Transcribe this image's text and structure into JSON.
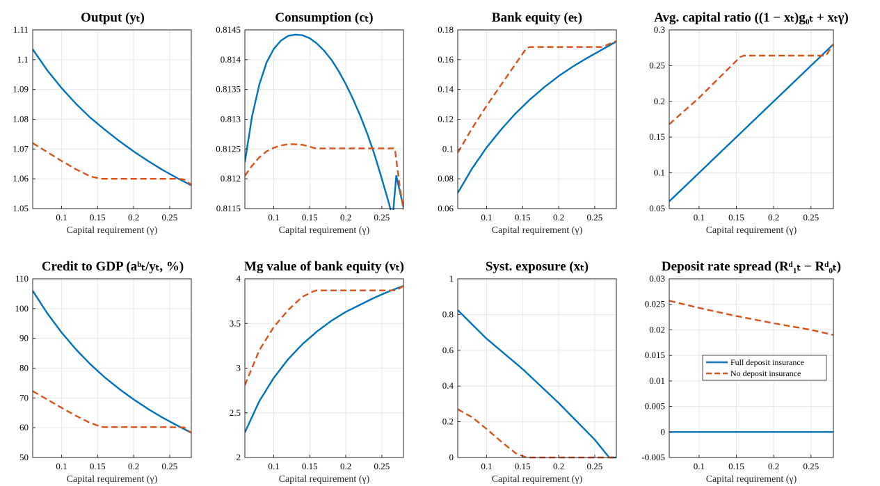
{
  "colors": {
    "full": "#0072BD",
    "none": "#D95319",
    "grid": "#e6e6e6",
    "axis": "#262626"
  },
  "chart_data": [
    {
      "type": "line",
      "title": "Output (yₜ)",
      "xlabel": "Capital requirement (γ)",
      "xlim": [
        0.06,
        0.28
      ],
      "ylim": [
        1.05,
        1.11
      ],
      "xticks": [
        0.1,
        0.15,
        0.2,
        0.25
      ],
      "xticklabels": [
        "0.1",
        "0.15",
        "0.2",
        "0.25"
      ],
      "yticks": [
        1.05,
        1.06,
        1.07,
        1.08,
        1.09,
        1.1,
        1.11
      ],
      "yticklabels": [
        "1.05",
        "1.06",
        "1.07",
        "1.08",
        "1.09",
        "1.1",
        "1.11"
      ],
      "series": [
        {
          "x": [
            0.06,
            0.08,
            0.1,
            0.12,
            0.14,
            0.16,
            0.18,
            0.2,
            0.22,
            0.24,
            0.26,
            0.28
          ],
          "y": [
            1.1035,
            1.0965,
            1.0905,
            1.0852,
            1.0805,
            1.0765,
            1.0727,
            1.0692,
            1.066,
            1.063,
            1.0603,
            1.0578
          ]
        },
        {
          "x": [
            0.06,
            0.08,
            0.1,
            0.12,
            0.14,
            0.155,
            0.18,
            0.22,
            0.26,
            0.27,
            0.28
          ],
          "y": [
            1.072,
            1.069,
            1.066,
            1.0632,
            1.0608,
            1.06,
            1.06,
            1.06,
            1.06,
            1.0598,
            1.058
          ]
        }
      ]
    },
    {
      "type": "line",
      "title": "Consumption (cₜ)",
      "xlabel": "Capital requirement (γ)",
      "xlim": [
        0.06,
        0.28
      ],
      "ylim": [
        0.8115,
        0.8145
      ],
      "xticks": [
        0.1,
        0.15,
        0.2,
        0.25
      ],
      "xticklabels": [
        "0.1",
        "0.15",
        "0.2",
        "0.25"
      ],
      "yticks": [
        0.8115,
        0.812,
        0.8125,
        0.813,
        0.8135,
        0.814,
        0.8145
      ],
      "yticklabels": [
        "0.8115",
        "0.812",
        "0.8125",
        "0.813",
        "0.8135",
        "0.814",
        "0.8145"
      ],
      "series": [
        {
          "x": [
            0.06,
            0.07,
            0.08,
            0.09,
            0.1,
            0.11,
            0.12,
            0.13,
            0.14,
            0.15,
            0.16,
            0.17,
            0.18,
            0.19,
            0.2,
            0.21,
            0.22,
            0.23,
            0.24,
            0.25,
            0.26,
            0.265,
            0.27,
            0.28
          ],
          "y": [
            0.81228,
            0.81305,
            0.81358,
            0.81395,
            0.81418,
            0.81432,
            0.8144,
            0.81442,
            0.81441,
            0.81436,
            0.81427,
            0.81415,
            0.814,
            0.81381,
            0.81359,
            0.81334,
            0.81306,
            0.81275,
            0.8124,
            0.812,
            0.81158,
            0.81135,
            0.81205,
            0.81152
          ]
        },
        {
          "x": [
            0.06,
            0.07,
            0.08,
            0.09,
            0.1,
            0.11,
            0.12,
            0.13,
            0.14,
            0.15,
            0.155,
            0.16,
            0.18,
            0.2,
            0.22,
            0.24,
            0.26,
            0.268,
            0.275,
            0.28
          ],
          "y": [
            0.81205,
            0.81222,
            0.81236,
            0.81246,
            0.81252,
            0.81256,
            0.81258,
            0.81258,
            0.81257,
            0.81254,
            0.81252,
            0.81251,
            0.81251,
            0.81251,
            0.81251,
            0.81251,
            0.81251,
            0.81251,
            0.81185,
            0.81148
          ]
        }
      ]
    },
    {
      "type": "line",
      "title": "Bank equity (eₜ)",
      "xlabel": "Capital requirement (γ)",
      "xlim": [
        0.06,
        0.28
      ],
      "ylim": [
        0.06,
        0.18
      ],
      "xticks": [
        0.1,
        0.15,
        0.2,
        0.25
      ],
      "xticklabels": [
        "0.1",
        "0.15",
        "0.2",
        "0.25"
      ],
      "yticks": [
        0.06,
        0.08,
        0.1,
        0.12,
        0.14,
        0.16,
        0.18
      ],
      "yticklabels": [
        "0.06",
        "0.08",
        "0.1",
        "0.12",
        "0.14",
        "0.16",
        "0.18"
      ],
      "series": [
        {
          "x": [
            0.06,
            0.08,
            0.1,
            0.12,
            0.14,
            0.16,
            0.18,
            0.2,
            0.22,
            0.24,
            0.26,
            0.28
          ],
          "y": [
            0.0705,
            0.087,
            0.101,
            0.113,
            0.1238,
            0.1332,
            0.1415,
            0.149,
            0.1555,
            0.1613,
            0.1667,
            0.1722
          ]
        },
        {
          "x": [
            0.06,
            0.08,
            0.1,
            0.12,
            0.14,
            0.155,
            0.16,
            0.2,
            0.24,
            0.26,
            0.28
          ],
          "y": [
            0.0975,
            0.114,
            0.129,
            0.143,
            0.157,
            0.1675,
            0.1685,
            0.1685,
            0.1685,
            0.1685,
            0.1725
          ]
        }
      ]
    },
    {
      "type": "line",
      "title": "Avg. capital ratio ((1 − xₜ)g₀ₜ + xₜγ)",
      "xlabel": "Capital requirement (γ)",
      "xlim": [
        0.06,
        0.28
      ],
      "ylim": [
        0.05,
        0.3
      ],
      "xticks": [
        0.1,
        0.15,
        0.2,
        0.25
      ],
      "xticklabels": [
        "0.1",
        "0.15",
        "0.2",
        "0.25"
      ],
      "yticks": [
        0.05,
        0.1,
        0.15,
        0.2,
        0.25,
        0.3
      ],
      "yticklabels": [
        "0.05",
        "0.1",
        "0.15",
        "0.2",
        "0.25",
        "0.3"
      ],
      "series": [
        {
          "x": [
            0.06,
            0.28
          ],
          "y": [
            0.06,
            0.28
          ]
        },
        {
          "x": [
            0.06,
            0.1,
            0.155,
            0.16,
            0.2,
            0.24,
            0.27,
            0.28
          ],
          "y": [
            0.168,
            0.205,
            0.262,
            0.264,
            0.264,
            0.264,
            0.264,
            0.28
          ]
        }
      ]
    },
    {
      "type": "line",
      "title": "Credit to GDP (aᵇₜ/yₜ, %)",
      "xlabel": "Capital requirement (γ)",
      "xlim": [
        0.06,
        0.28
      ],
      "ylim": [
        50,
        110
      ],
      "xticks": [
        0.1,
        0.15,
        0.2,
        0.25
      ],
      "xticklabels": [
        "0.1",
        "0.15",
        "0.2",
        "0.25"
      ],
      "yticks": [
        50,
        60,
        70,
        80,
        90,
        100,
        110
      ],
      "yticklabels": [
        "50",
        "60",
        "70",
        "80",
        "90",
        "100",
        "110"
      ],
      "series": [
        {
          "x": [
            0.06,
            0.08,
            0.1,
            0.12,
            0.14,
            0.16,
            0.18,
            0.2,
            0.22,
            0.24,
            0.26,
            0.28
          ],
          "y": [
            106.0,
            98.5,
            92.0,
            86.3,
            81.3,
            76.9,
            73.0,
            69.5,
            66.3,
            63.4,
            60.8,
            58.3
          ]
        },
        {
          "x": [
            0.06,
            0.08,
            0.1,
            0.12,
            0.14,
            0.155,
            0.16,
            0.2,
            0.24,
            0.27,
            0.28
          ],
          "y": [
            72.3,
            69.5,
            66.7,
            64.0,
            61.6,
            60.3,
            60.2,
            60.2,
            60.2,
            60.1,
            58.3
          ]
        }
      ]
    },
    {
      "type": "line",
      "title": "Mg value of bank equity (vₜ)",
      "xlabel": "Capital requirement (γ)",
      "xlim": [
        0.06,
        0.28
      ],
      "ylim": [
        2,
        4
      ],
      "xticks": [
        0.1,
        0.15,
        0.2,
        0.25
      ],
      "xticklabels": [
        "0.1",
        "0.15",
        "0.2",
        "0.25"
      ],
      "yticks": [
        2,
        2.5,
        3,
        3.5,
        4
      ],
      "yticklabels": [
        "2",
        "2.5",
        "3",
        "3.5",
        "4"
      ],
      "series": [
        {
          "x": [
            0.06,
            0.08,
            0.1,
            0.12,
            0.14,
            0.16,
            0.18,
            0.2,
            0.22,
            0.24,
            0.26,
            0.28
          ],
          "y": [
            2.28,
            2.63,
            2.89,
            3.1,
            3.27,
            3.41,
            3.53,
            3.63,
            3.71,
            3.79,
            3.86,
            3.92
          ]
        },
        {
          "x": [
            0.06,
            0.08,
            0.1,
            0.12,
            0.14,
            0.155,
            0.16,
            0.2,
            0.24,
            0.27,
            0.28
          ],
          "y": [
            2.81,
            3.2,
            3.46,
            3.65,
            3.8,
            3.86,
            3.87,
            3.87,
            3.87,
            3.87,
            3.92
          ]
        }
      ]
    },
    {
      "type": "line",
      "title": "Syst. exposure (xₜ)",
      "xlabel": "Capital requirement (γ)",
      "xlim": [
        0.06,
        0.28
      ],
      "ylim": [
        0,
        1
      ],
      "xticks": [
        0.1,
        0.15,
        0.2,
        0.25
      ],
      "xticklabels": [
        "0.1",
        "0.15",
        "0.2",
        "0.25"
      ],
      "yticks": [
        0,
        0.2,
        0.4,
        0.6,
        0.8,
        1
      ],
      "yticklabels": [
        "0",
        "0.2",
        "0.4",
        "0.6",
        "0.8",
        "1"
      ],
      "series": [
        {
          "x": [
            0.06,
            0.1,
            0.15,
            0.2,
            0.25,
            0.27,
            0.28
          ],
          "y": [
            0.825,
            0.665,
            0.495,
            0.305,
            0.1,
            0.0,
            0.0
          ]
        },
        {
          "x": [
            0.06,
            0.08,
            0.1,
            0.12,
            0.14,
            0.155,
            0.2,
            0.24,
            0.28
          ],
          "y": [
            0.27,
            0.225,
            0.16,
            0.09,
            0.025,
            0.0,
            0.0,
            0.0,
            0.0
          ]
        }
      ]
    },
    {
      "type": "line",
      "title": "Deposit rate spread (Rᵈ₁ₜ − Rᵈ₀ₜ)",
      "xlabel": "Capital requirement (γ)",
      "xlim": [
        0.06,
        0.28
      ],
      "ylim": [
        -0.005,
        0.03
      ],
      "xticks": [
        0.1,
        0.15,
        0.2,
        0.25
      ],
      "xticklabels": [
        "0.1",
        "0.15",
        "0.2",
        "0.25"
      ],
      "yticks": [
        -0.005,
        0,
        0.005,
        0.01,
        0.015,
        0.02,
        0.025,
        0.03
      ],
      "yticklabels": [
        "-0.005",
        "0",
        "0.005",
        "0.01",
        "0.015",
        "0.02",
        "0.025",
        "0.03"
      ],
      "legend": {
        "placement": "right",
        "entries": [
          "Full deposit insurance",
          "No deposit insurance"
        ]
      },
      "series": [
        {
          "name": "Full deposit insurance",
          "x": [
            0.06,
            0.28
          ],
          "y": [
            0,
            0
          ]
        },
        {
          "name": "No deposit insurance",
          "x": [
            0.06,
            0.1,
            0.15,
            0.2,
            0.25,
            0.28
          ],
          "y": [
            0.0257,
            0.0243,
            0.0227,
            0.0213,
            0.02,
            0.019
          ]
        }
      ]
    }
  ]
}
